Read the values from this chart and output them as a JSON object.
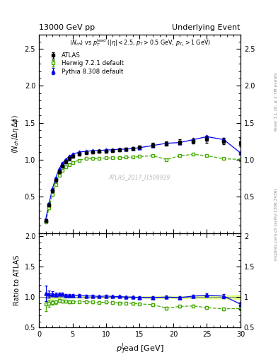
{
  "title_left": "13000 GeV pp",
  "title_right": "Underlying Event",
  "ylim_main": [
    0.0,
    2.7
  ],
  "ylim_ratio": [
    0.5,
    2.05
  ],
  "yticks_main": [
    0.5,
    1.0,
    1.5,
    2.0,
    2.5
  ],
  "yticks_ratio": [
    0.5,
    1.0,
    1.5,
    2.0
  ],
  "xlim": [
    0,
    30
  ],
  "atlas_x": [
    1.0,
    1.5,
    2.0,
    2.5,
    3.0,
    3.5,
    4.0,
    4.5,
    5.0,
    6.0,
    7.0,
    8.0,
    9.0,
    10.0,
    11.0,
    12.0,
    13.0,
    14.0,
    15.0,
    17.0,
    19.0,
    21.0,
    23.0,
    25.0,
    27.5,
    30.0
  ],
  "atlas_y": [
    0.17,
    0.38,
    0.57,
    0.72,
    0.83,
    0.91,
    0.97,
    1.01,
    1.04,
    1.07,
    1.09,
    1.1,
    1.11,
    1.11,
    1.12,
    1.13,
    1.14,
    1.15,
    1.17,
    1.2,
    1.22,
    1.24,
    1.25,
    1.27,
    1.25,
    1.23
  ],
  "atlas_yerr": [
    0.02,
    0.02,
    0.02,
    0.02,
    0.02,
    0.02,
    0.02,
    0.02,
    0.02,
    0.02,
    0.02,
    0.02,
    0.02,
    0.02,
    0.02,
    0.02,
    0.02,
    0.02,
    0.02,
    0.03,
    0.03,
    0.03,
    0.03,
    0.04,
    0.04,
    0.05
  ],
  "herwig_x": [
    1.0,
    1.5,
    2.0,
    2.5,
    3.0,
    3.5,
    4.0,
    4.5,
    5.0,
    6.0,
    7.0,
    8.0,
    9.0,
    10.0,
    11.0,
    12.0,
    13.0,
    14.0,
    15.0,
    17.0,
    19.0,
    21.0,
    23.0,
    25.0,
    27.5,
    30.0
  ],
  "herwig_y": [
    0.15,
    0.34,
    0.52,
    0.66,
    0.78,
    0.85,
    0.9,
    0.93,
    0.96,
    0.99,
    1.01,
    1.01,
    1.01,
    1.02,
    1.02,
    1.02,
    1.03,
    1.03,
    1.04,
    1.05,
    1.0,
    1.05,
    1.07,
    1.05,
    1.01,
    1.0
  ],
  "herwig_yerr": [
    0.005,
    0.005,
    0.005,
    0.005,
    0.005,
    0.005,
    0.005,
    0.005,
    0.005,
    0.005,
    0.005,
    0.005,
    0.005,
    0.005,
    0.005,
    0.005,
    0.005,
    0.005,
    0.005,
    0.005,
    0.005,
    0.005,
    0.005,
    0.005,
    0.005,
    0.005
  ],
  "pythia_x": [
    1.0,
    1.5,
    2.0,
    2.5,
    3.0,
    3.5,
    4.0,
    4.5,
    5.0,
    6.0,
    7.0,
    8.0,
    9.0,
    10.0,
    11.0,
    12.0,
    13.0,
    14.0,
    15.0,
    17.0,
    19.0,
    21.0,
    23.0,
    25.0,
    27.5,
    30.0
  ],
  "pythia_y": [
    0.18,
    0.4,
    0.6,
    0.75,
    0.87,
    0.95,
    1.0,
    1.04,
    1.07,
    1.1,
    1.11,
    1.12,
    1.12,
    1.13,
    1.13,
    1.14,
    1.14,
    1.15,
    1.16,
    1.19,
    1.22,
    1.23,
    1.27,
    1.31,
    1.27,
    1.09
  ],
  "pythia_yerr": [
    0.005,
    0.005,
    0.005,
    0.005,
    0.005,
    0.005,
    0.005,
    0.005,
    0.005,
    0.005,
    0.005,
    0.005,
    0.005,
    0.005,
    0.005,
    0.005,
    0.005,
    0.005,
    0.005,
    0.005,
    0.005,
    0.005,
    0.005,
    0.01,
    0.01,
    0.015
  ],
  "atlas_color": "#000000",
  "herwig_color": "#44aa00",
  "pythia_color": "#0000ee",
  "band_color": "#ddff88",
  "legend_entries": [
    "ATLAS",
    "Herwig 7.2.1 default",
    "Pythia 8.308 default"
  ]
}
